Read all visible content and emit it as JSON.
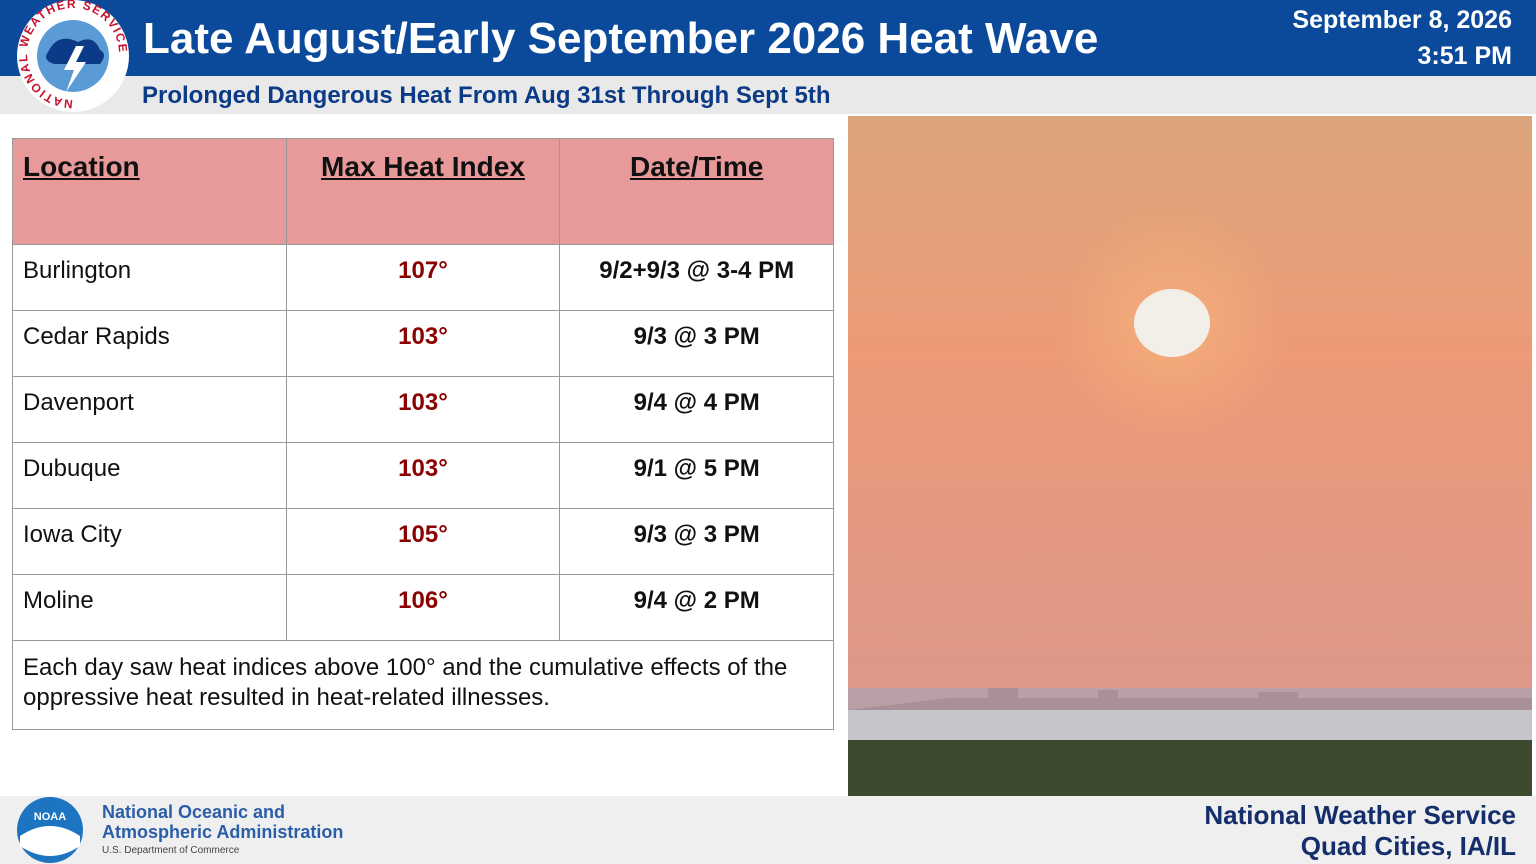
{
  "header": {
    "title": "Late August/Early September 2026 Heat Wave",
    "subtitle": "Prolonged Dangerous Heat From Aug 31st Through Sept 5th",
    "date": "September 8, 2026",
    "time": "3:51 PM"
  },
  "logo": {
    "ring_text": "NATIONAL WEATHER SERVICE"
  },
  "table": {
    "columns": [
      "Location",
      "Max Heat Index",
      "Date/Time"
    ],
    "rows": [
      [
        "Burlington",
        "107°",
        "9/2+9/3 @ 3-4 PM"
      ],
      [
        "Cedar Rapids",
        "103°",
        "9/3 @ 3 PM"
      ],
      [
        "Davenport",
        "103°",
        "9/4 @ 4 PM"
      ],
      [
        "Dubuque",
        "103°",
        "9/1 @ 5 PM"
      ],
      [
        "Iowa City",
        "105°",
        "9/3 @ 3 PM"
      ],
      [
        "Moline",
        "106°",
        "9/4 @ 2 PM"
      ]
    ],
    "note": "Each day saw heat indices above 100° and the cumulative effects of the oppressive heat resulted in heat-related illnesses."
  },
  "footer": {
    "noaa_logo": "NOAA",
    "agency_line1": "National Oceanic and",
    "agency_line2": "Atmospheric Administration",
    "department": "U.S. Department of Commerce",
    "office": "National Weather Service",
    "location": "Quad Cities, IA/IL"
  }
}
